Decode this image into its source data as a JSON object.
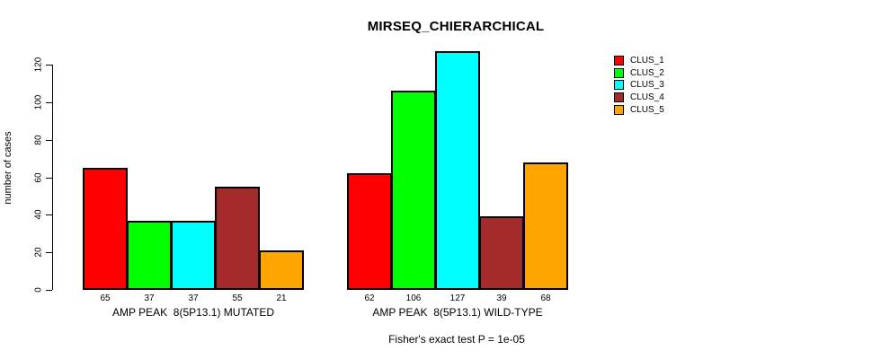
{
  "title": "MIRSEQ_CHIERARCHICAL",
  "chart_data": {
    "type": "bar",
    "title": "MIRSEQ_CHIERARCHICAL",
    "xlabel": "",
    "ylabel": "number of cases",
    "ylim": [
      0,
      127
    ],
    "yticks": [
      0,
      20,
      40,
      60,
      80,
      100,
      120
    ],
    "grid": false,
    "legend_position": "right-outside",
    "bar_value_labels": true,
    "categories": [
      "AMP PEAK  8(5P13.1) MUTATED",
      "AMP PEAK  8(5P13.1) WILD-TYPE"
    ],
    "series": [
      {
        "name": "CLUS_1",
        "color": "#FF0000",
        "values": [
          65,
          62
        ]
      },
      {
        "name": "CLUS_2",
        "color": "#00FF00",
        "values": [
          37,
          106
        ]
      },
      {
        "name": "CLUS_3",
        "color": "#00FFFF",
        "values": [
          37,
          127
        ]
      },
      {
        "name": "CLUS_4",
        "color": "#A52A2A",
        "values": [
          55,
          39
        ]
      },
      {
        "name": "CLUS_5",
        "color": "#FFA500",
        "values": [
          21,
          68
        ]
      }
    ],
    "footnote": "Fisher's exact test P = 1e-05"
  },
  "colors": {
    "background": "#FFFFFF",
    "axis": "#000000",
    "text": "#000000"
  }
}
